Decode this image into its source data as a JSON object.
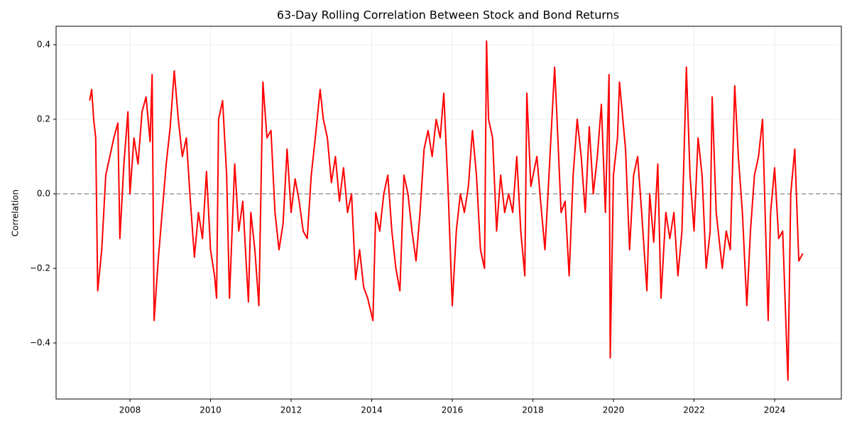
{
  "chart_data": {
    "type": "line",
    "title": "63-Day Rolling Correlation Between Stock and Bond Returns",
    "ylabel": "Correlation",
    "color": "#ff0000",
    "grid": true,
    "reference_line": {
      "value": 0,
      "color": "#999999",
      "style": "dashed"
    },
    "xlim": [
      2006.167,
      2025.656
    ],
    "xticks": [
      2008,
      2010,
      2012,
      2014,
      2016,
      2018,
      2020,
      2022,
      2024
    ],
    "ylim": [
      -0.5505,
      0.4495
    ],
    "yticks": [
      {
        "value": -0.4,
        "label": "−0.4"
      },
      {
        "value": -0.2,
        "label": "−0.2"
      },
      {
        "value": 0,
        "label": "0.0"
      },
      0.2,
      0.4
    ],
    "x": [
      2007.0,
      2007.05,
      2007.1,
      2007.15,
      2007.2,
      2007.3,
      2007.4,
      2007.5,
      2007.6,
      2007.7,
      2007.75,
      2007.85,
      2007.95,
      2008.0,
      2008.1,
      2008.2,
      2008.3,
      2008.4,
      2008.5,
      2008.55,
      2008.6,
      2008.7,
      2008.8,
      2008.9,
      2009.0,
      2009.1,
      2009.2,
      2009.3,
      2009.4,
      2009.5,
      2009.6,
      2009.7,
      2009.8,
      2009.9,
      2010.0,
      2010.1,
      2010.15,
      2010.2,
      2010.3,
      2010.4,
      2010.47,
      2010.6,
      2010.7,
      2010.8,
      2010.94,
      2011.0,
      2011.1,
      2011.2,
      2011.3,
      2011.4,
      2011.5,
      2011.6,
      2011.7,
      2011.8,
      2011.9,
      2012.0,
      2012.1,
      2012.2,
      2012.3,
      2012.4,
      2012.5,
      2012.6,
      2012.72,
      2012.8,
      2012.9,
      2013.0,
      2013.1,
      2013.2,
      2013.3,
      2013.4,
      2013.5,
      2013.6,
      2013.7,
      2013.8,
      2013.9,
      2014.03,
      2014.1,
      2014.2,
      2014.3,
      2014.4,
      2014.5,
      2014.6,
      2014.7,
      2014.8,
      2014.9,
      2015.0,
      2015.1,
      2015.2,
      2015.3,
      2015.4,
      2015.5,
      2015.6,
      2015.7,
      2015.79,
      2015.9,
      2016.0,
      2016.1,
      2016.2,
      2016.3,
      2016.4,
      2016.5,
      2016.6,
      2016.7,
      2016.8,
      2016.85,
      2016.9,
      2017.0,
      2017.1,
      2017.2,
      2017.3,
      2017.4,
      2017.5,
      2017.6,
      2017.7,
      2017.8,
      2017.85,
      2017.95,
      2018.1,
      2018.2,
      2018.3,
      2018.4,
      2018.54,
      2018.6,
      2018.7,
      2018.8,
      2018.9,
      2019.0,
      2019.1,
      2019.2,
      2019.3,
      2019.4,
      2019.5,
      2019.6,
      2019.7,
      2019.8,
      2019.89,
      2019.92,
      2020.0,
      2020.1,
      2020.15,
      2020.3,
      2020.4,
      2020.5,
      2020.6,
      2020.7,
      2020.83,
      2020.9,
      2021.0,
      2021.1,
      2021.18,
      2021.3,
      2021.4,
      2021.5,
      2021.6,
      2021.7,
      2021.81,
      2021.9,
      2022.0,
      2022.1,
      2022.2,
      2022.3,
      2022.4,
      2022.45,
      2022.55,
      2022.7,
      2022.8,
      2022.9,
      2023.01,
      2023.1,
      2023.2,
      2023.31,
      2023.4,
      2023.5,
      2023.6,
      2023.7,
      2023.84,
      2023.9,
      2024.0,
      2024.1,
      2024.2,
      2024.33,
      2024.4,
      2024.5,
      2024.6,
      2024.7
    ],
    "values": [
      0.25,
      0.28,
      0.2,
      0.15,
      -0.26,
      -0.15,
      0.05,
      0.1,
      0.15,
      0.19,
      -0.12,
      0.08,
      0.22,
      0.0,
      0.15,
      0.08,
      0.22,
      0.26,
      0.14,
      0.32,
      -0.34,
      -0.18,
      -0.05,
      0.08,
      0.18,
      0.33,
      0.2,
      0.1,
      0.15,
      -0.02,
      -0.17,
      -0.05,
      -0.12,
      0.06,
      -0.15,
      -0.22,
      -0.28,
      0.2,
      0.25,
      0.05,
      -0.28,
      0.08,
      -0.1,
      -0.02,
      -0.29,
      -0.05,
      -0.15,
      -0.3,
      0.3,
      0.15,
      0.17,
      -0.05,
      -0.15,
      -0.08,
      0.12,
      -0.05,
      0.04,
      -0.02,
      -0.1,
      -0.12,
      0.05,
      0.15,
      0.28,
      0.2,
      0.15,
      0.03,
      0.1,
      -0.02,
      0.07,
      -0.05,
      0.0,
      -0.23,
      -0.15,
      -0.25,
      -0.28,
      -0.34,
      -0.05,
      -0.1,
      0.0,
      0.05,
      -0.1,
      -0.2,
      -0.26,
      0.05,
      0.0,
      -0.1,
      -0.18,
      -0.05,
      0.12,
      0.17,
      0.1,
      0.2,
      0.15,
      0.27,
      0.0,
      -0.3,
      -0.1,
      0.0,
      -0.05,
      0.02,
      0.17,
      0.05,
      -0.15,
      -0.2,
      0.41,
      0.2,
      0.15,
      -0.1,
      0.05,
      -0.05,
      0.0,
      -0.05,
      0.1,
      -0.1,
      -0.22,
      0.27,
      0.02,
      0.1,
      -0.03,
      -0.15,
      0.05,
      0.34,
      0.2,
      -0.05,
      -0.02,
      -0.22,
      0.05,
      0.2,
      0.1,
      -0.05,
      0.18,
      0.0,
      0.1,
      0.24,
      -0.05,
      0.32,
      -0.44,
      0.05,
      0.15,
      0.3,
      0.12,
      -0.15,
      0.05,
      0.1,
      -0.05,
      -0.26,
      0.0,
      -0.13,
      0.08,
      -0.28,
      -0.05,
      -0.12,
      -0.05,
      -0.22,
      -0.1,
      0.34,
      0.05,
      -0.1,
      0.15,
      0.05,
      -0.2,
      -0.1,
      0.26,
      -0.05,
      -0.2,
      -0.1,
      -0.15,
      0.29,
      0.1,
      -0.05,
      -0.3,
      -0.1,
      0.05,
      0.1,
      0.2,
      -0.34,
      -0.05,
      0.07,
      -0.12,
      -0.1,
      -0.5,
      0.0,
      0.12,
      -0.18,
      -0.16
    ]
  }
}
